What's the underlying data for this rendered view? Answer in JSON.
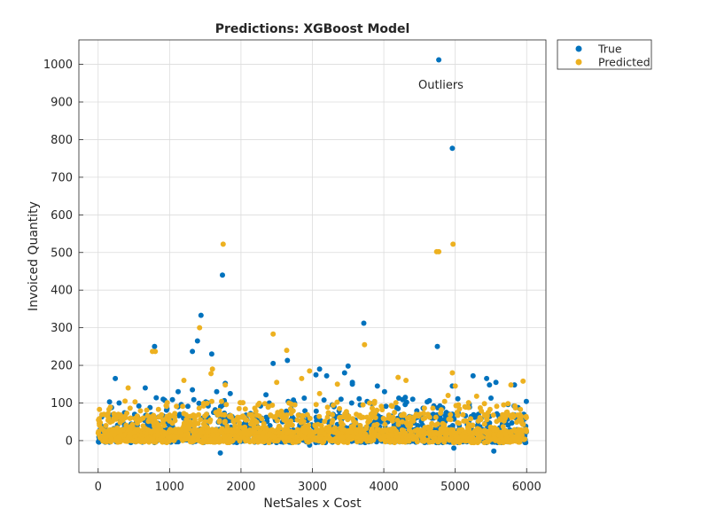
{
  "chart_data": {
    "type": "scatter",
    "title": "Predictions: XGBoost Model",
    "xlabel": "NetSales x Cost",
    "ylabel": "Invoiced Quantity",
    "xlim": [
      -270,
      6270
    ],
    "ylim": [
      -85,
      1065
    ],
    "xticks": [
      0,
      1000,
      2000,
      3000,
      4000,
      5000,
      6000
    ],
    "yticks": [
      0,
      100,
      200,
      300,
      400,
      500,
      600,
      700,
      800,
      900,
      1000
    ],
    "grid": true,
    "legend_position": "outside-top-right",
    "annotations": [
      {
        "text": "Outliers",
        "x": 4980,
        "y": 975
      }
    ],
    "series": [
      {
        "name": "True",
        "color": "#0072BD",
        "points": [
          [
            4770,
            1012
          ],
          [
            4960,
            777
          ],
          [
            1740,
            440
          ],
          [
            1440,
            333
          ],
          [
            3720,
            312
          ],
          [
            1390,
            265
          ],
          [
            790,
            250
          ],
          [
            4750,
            250
          ],
          [
            1320,
            237
          ],
          [
            1590,
            230
          ],
          [
            2650,
            213
          ],
          [
            2450,
            205
          ],
          [
            3500,
            198
          ],
          [
            3100,
            190
          ],
          [
            3450,
            180
          ],
          [
            1780,
            152
          ],
          [
            1850,
            125
          ],
          [
            240,
            165
          ],
          [
            660,
            140
          ],
          [
            1320,
            135
          ],
          [
            1660,
            130
          ],
          [
            3200,
            172
          ],
          [
            3050,
            175
          ],
          [
            3560,
            155
          ],
          [
            3560,
            150
          ],
          [
            3910,
            145
          ],
          [
            4300,
            115
          ],
          [
            4960,
            145
          ],
          [
            5250,
            172
          ],
          [
            5440,
            165
          ],
          [
            5480,
            148
          ],
          [
            5570,
            155
          ],
          [
            5830,
            148
          ],
          [
            5880,
            88
          ],
          [
            4700,
            92
          ],
          [
            1710,
            -33
          ],
          [
            2960,
            -12
          ],
          [
            4980,
            -20
          ],
          [
            5540,
            -28
          ],
          [
            4010,
            130
          ],
          [
            4200,
            85
          ],
          [
            2750,
            100
          ],
          [
            3670,
            95
          ],
          [
            2350,
            122
          ],
          [
            1120,
            130
          ],
          [
            910,
            110
          ],
          [
            5960,
            70
          ]
        ]
      },
      {
        "name": "Predicted",
        "color": "#EDB120",
        "points": [
          [
            4970,
            522
          ],
          [
            1750,
            522
          ],
          [
            4770,
            502
          ],
          [
            4740,
            502
          ],
          [
            1420,
            300
          ],
          [
            2450,
            283
          ],
          [
            3730,
            255
          ],
          [
            760,
            237
          ],
          [
            800,
            237
          ],
          [
            2640,
            240
          ],
          [
            4960,
            180
          ],
          [
            2960,
            185
          ],
          [
            1600,
            190
          ],
          [
            1580,
            178
          ],
          [
            4200,
            168
          ],
          [
            4310,
            160
          ],
          [
            5000,
            145
          ],
          [
            5780,
            148
          ],
          [
            5950,
            158
          ],
          [
            1780,
            148
          ],
          [
            3350,
            150
          ],
          [
            2500,
            155
          ],
          [
            4900,
            120
          ],
          [
            5300,
            118
          ],
          [
            420,
            140
          ],
          [
            1200,
            160
          ],
          [
            3800,
            100
          ],
          [
            2850,
            165
          ],
          [
            3100,
            125
          ]
        ]
      }
    ]
  }
}
